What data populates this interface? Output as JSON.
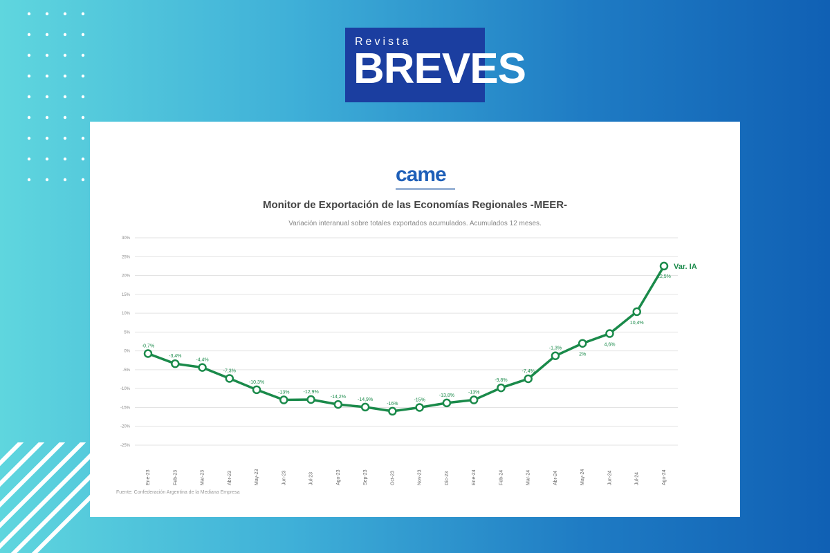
{
  "brand": {
    "small": "Revista",
    "big": "BREVES",
    "colors": {
      "logo_bg": "#1b3ea0",
      "line": "#1a8a4a"
    }
  },
  "came_logo": {
    "word": "came",
    "tagline": "Confederación Argentina de la Mediana Empresa"
  },
  "chart_data": {
    "type": "line",
    "title": "Monitor de Exportación de las Economías Regionales -MEER-",
    "subtitle": "Variación interanual sobre totales exportados acumulados. Acumulados 12 meses.",
    "xlabel": "",
    "ylabel": "",
    "ylim": [
      -25,
      30
    ],
    "y_ticks": [
      "30%",
      "25%",
      "20%",
      "15%",
      "10%",
      "5%",
      "0%",
      "-5%",
      "-10%",
      "-15%",
      "-20%",
      "-25%"
    ],
    "categories": [
      "Ene-23",
      "Feb-23",
      "Mar-23",
      "Abr-23",
      "May-23",
      "Jun-23",
      "Jul-23",
      "Ago-23",
      "Sep-23",
      "Oct-23",
      "Nov-23",
      "Dic-23",
      "Ene-24",
      "Feb-24",
      "Mar-24",
      "Abr-24",
      "May-24",
      "Jun-24",
      "Jul-24",
      "Ago-24"
    ],
    "series": [
      {
        "name": "Var. IA",
        "values": [
          -0.7,
          -3.4,
          -4.4,
          -7.3,
          -10.3,
          -13,
          -12.9,
          -14.2,
          -14.9,
          -16,
          -15,
          -13.8,
          -13,
          -9.8,
          -7.4,
          -1.3,
          2,
          4.6,
          10.4,
          22.5
        ],
        "labels": [
          "-0,7%",
          "-3,4%",
          "-4,4%",
          "-7,3%",
          "-10,3%",
          "-13%",
          "-12,9%",
          "-14,2%",
          "-14,9%",
          "-16%",
          "-15%",
          "-13,8%",
          "-13%",
          "-9,8%",
          "-7,4%",
          "-1,3%",
          "2%",
          "4,6%",
          "10,4%",
          "22,5%"
        ]
      }
    ],
    "legend": "end-of-line label",
    "grid": true,
    "source": "Fuente: Confederación Argentina de la Mediana Empresa"
  }
}
